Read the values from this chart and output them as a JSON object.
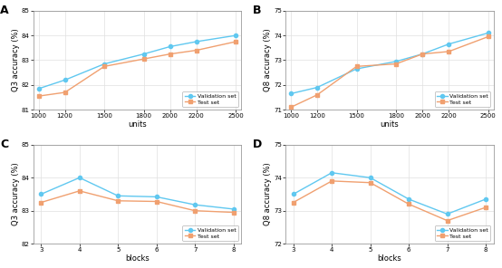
{
  "A": {
    "label": "A",
    "xlabel": "units",
    "ylabel": "Q3 accuracy (%)",
    "x": [
      1000,
      1200,
      1500,
      1800,
      2000,
      2200,
      2500
    ],
    "val": [
      81.85,
      82.2,
      82.85,
      83.25,
      83.55,
      83.75,
      84.0
    ],
    "test": [
      81.55,
      81.7,
      82.75,
      83.05,
      83.25,
      83.4,
      83.75
    ],
    "ylim": [
      81,
      85
    ],
    "yticks": [
      81,
      82,
      83,
      84,
      85
    ],
    "xticks": [
      1000,
      1200,
      1500,
      1800,
      2000,
      2200,
      2500
    ]
  },
  "B": {
    "label": "B",
    "xlabel": "units",
    "ylabel": "Q8 accuracy (%)",
    "x": [
      1000,
      1200,
      1500,
      1800,
      2000,
      2200,
      2500
    ],
    "val": [
      71.65,
      71.9,
      72.65,
      72.95,
      73.25,
      73.65,
      74.1
    ],
    "test": [
      71.1,
      71.6,
      72.75,
      72.85,
      73.25,
      73.35,
      73.95
    ],
    "ylim": [
      71,
      75
    ],
    "yticks": [
      71,
      72,
      73,
      74,
      75
    ],
    "xticks": [
      1000,
      1200,
      1500,
      1800,
      2000,
      2200,
      2500
    ]
  },
  "C": {
    "label": "C",
    "xlabel": "blocks",
    "ylabel": "Q3 accuracy (%)",
    "x": [
      3,
      4,
      5,
      6,
      7,
      8
    ],
    "val": [
      83.5,
      84.0,
      83.45,
      83.42,
      83.18,
      83.05
    ],
    "test": [
      83.25,
      83.6,
      83.3,
      83.28,
      83.0,
      82.95
    ],
    "ylim": [
      82,
      85
    ],
    "yticks": [
      82,
      83,
      84,
      85
    ],
    "xticks": [
      3,
      4,
      5,
      6,
      7,
      8
    ]
  },
  "D": {
    "label": "D",
    "xlabel": "blocks",
    "ylabel": "Q8 accuracy (%)",
    "x": [
      3,
      4,
      5,
      6,
      7,
      8
    ],
    "val": [
      73.5,
      74.15,
      74.0,
      73.35,
      72.9,
      73.35
    ],
    "test": [
      73.25,
      73.9,
      73.85,
      73.2,
      72.7,
      73.1
    ],
    "ylim": [
      72,
      75
    ],
    "yticks": [
      72,
      73,
      74,
      75
    ],
    "xticks": [
      3,
      4,
      5,
      6,
      7,
      8
    ]
  },
  "color_val": "#60c8f0",
  "color_test": "#f0a070",
  "marker_val": "o",
  "marker_test": "s",
  "legend_val": "Validation set",
  "legend_test": "Test set",
  "bg_color": "#ffffff"
}
